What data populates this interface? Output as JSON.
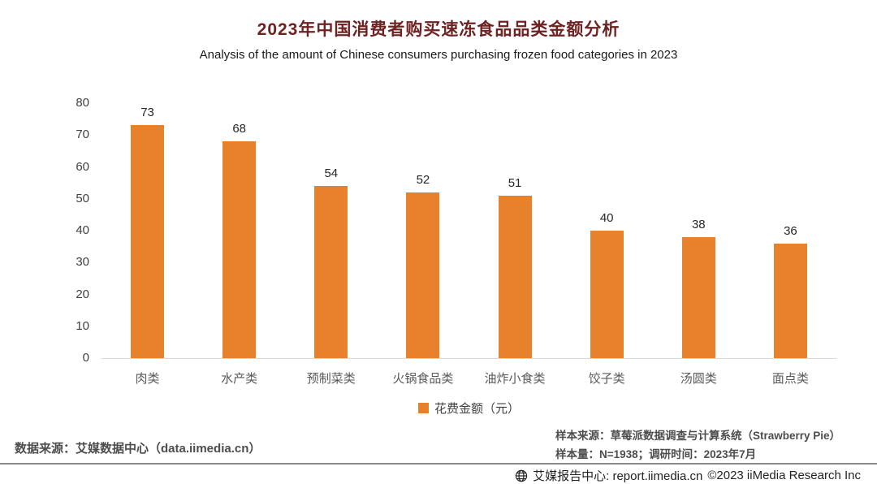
{
  "title": "2023年中国消费者购买速冻食品品类金额分析",
  "subtitle": "Analysis of the amount of Chinese consumers purchasing frozen food categories in 2023",
  "chart_data": {
    "type": "bar",
    "categories": [
      "肉类",
      "水产类",
      "预制菜类",
      "火锅食品类",
      "油炸小食类",
      "饺子类",
      "汤圆类",
      "面点类"
    ],
    "values": [
      73,
      68,
      54,
      52,
      51,
      40,
      38,
      36
    ],
    "title": "2023年中国消费者购买速冻食品品类金额分析",
    "xlabel": "",
    "ylabel": "",
    "ylim": [
      0,
      80
    ],
    "yticks": [
      0,
      10,
      20,
      30,
      40,
      50,
      60,
      70,
      80
    ],
    "grid": false,
    "legend": [
      "花费金额（元）"
    ],
    "legend_position": "bottom",
    "bar_color": "#E8812C"
  },
  "legend_label": "花费金额（元）",
  "colors": {
    "bar": "#E8812C",
    "title": "#6e2222",
    "divider": "#8a8a8a"
  },
  "footer": {
    "source_left": "数据来源：艾媒数据中心（data.iimedia.cn）",
    "sample_source": "样本来源：草莓派数据调查与计算系统（Strawberry Pie）",
    "sample_info": "样本量：N=1938；调研时间：2023年7月",
    "report_center": "艾媒报告中心: report.iimedia.cn",
    "copyright": "©2023  iiMedia Research Inc"
  }
}
